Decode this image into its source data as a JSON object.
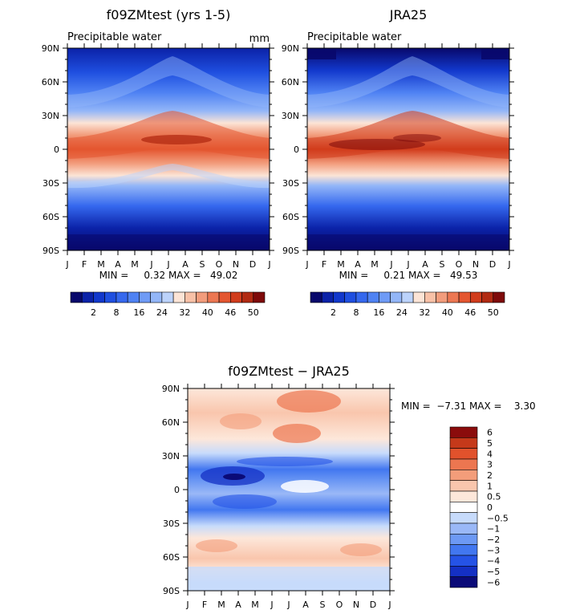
{
  "panels": {
    "model": {
      "title": "f09ZMtest (yrs 1-5)",
      "subtitle": "Precipitable water",
      "units": "mm",
      "minmax": "MIN =     0.32 MAX =   49.02"
    },
    "obs": {
      "title": "JRA25",
      "subtitle": "Precipitable water",
      "minmax": "MIN =     0.21 MAX =   49.53"
    },
    "diff": {
      "title": "f09ZMtest − JRA25",
      "minmax": "MIN =  −7.31 MAX =    3.30"
    }
  },
  "colorbars": {
    "absolute": {
      "colors": [
        "#08086b",
        "#0b22a8",
        "#1238cc",
        "#1f4fe0",
        "#3568ee",
        "#4f82f3",
        "#6f9bf6",
        "#93b6f8",
        "#bcd3fb",
        "#fce4d6",
        "#f8c1a7",
        "#f29c7c",
        "#ec7752",
        "#e45630",
        "#d13c1c",
        "#b12a12",
        "#7e0a0a"
      ],
      "labels": [
        "2",
        "8",
        "16",
        "24",
        "32",
        "40",
        "46",
        "50"
      ]
    },
    "difference": {
      "colors": [
        "#0b0b78",
        "#1430c4",
        "#2553e6",
        "#4277f0",
        "#6d99f4",
        "#9ab8f7",
        "#c7dbfb",
        "#ffffff",
        "#fde7da",
        "#f9c6ad",
        "#f39d7a",
        "#ec7650",
        "#e1522c",
        "#c5391a",
        "#8b0c0c"
      ],
      "labels": [
        "−6",
        "−5",
        "−4",
        "−3",
        "−2",
        "−1",
        "−0.5",
        "0",
        "0.5",
        "1",
        "2",
        "3",
        "4",
        "5",
        "6"
      ]
    }
  },
  "chart_data": [
    {
      "type": "heatmap",
      "title": "f09ZMtest (yrs 1-5)",
      "subtitle": "Precipitable water",
      "units": "mm",
      "x_ticklabels": [
        "J",
        "F",
        "M",
        "A",
        "M",
        "J",
        "J",
        "A",
        "S",
        "O",
        "N",
        "D",
        "J"
      ],
      "y_ticklabels": [
        "90N",
        "60N",
        "30N",
        "0",
        "30S",
        "60S",
        "90S"
      ],
      "y": [
        90,
        60,
        30,
        0,
        -30,
        -60,
        -90
      ],
      "approx_zonal_mean_mm": [
        4,
        9,
        24,
        44,
        22,
        7,
        2
      ],
      "min": 0.32,
      "max": 49.02
    },
    {
      "type": "heatmap",
      "title": "JRA25",
      "subtitle": "Precipitable water",
      "units": "mm",
      "x_ticklabels": [
        "J",
        "F",
        "M",
        "A",
        "M",
        "J",
        "J",
        "A",
        "S",
        "O",
        "N",
        "D",
        "J"
      ],
      "y_ticklabels": [
        "90N",
        "60N",
        "30N",
        "0",
        "30S",
        "60S",
        "90S"
      ],
      "y": [
        90,
        60,
        30,
        0,
        -30,
        -60,
        -90
      ],
      "approx_zonal_mean_mm": [
        3,
        9,
        24,
        46,
        23,
        7,
        1
      ],
      "min": 0.21,
      "max": 49.53
    },
    {
      "type": "heatmap",
      "title": "f09ZMtest − JRA25",
      "x_ticklabels": [
        "J",
        "F",
        "M",
        "A",
        "M",
        "J",
        "J",
        "A",
        "S",
        "O",
        "N",
        "D",
        "J"
      ],
      "y_ticklabels": [
        "90N",
        "60N",
        "30N",
        "0",
        "30S",
        "60S",
        "90S"
      ],
      "y": [
        90,
        60,
        30,
        0,
        -30,
        -60,
        -90
      ],
      "approx_zonal_mean_diff": [
        1,
        1.5,
        0.4,
        -3,
        -0.8,
        0.8,
        -0.6
      ],
      "min": -7.31,
      "max": 3.3
    }
  ]
}
